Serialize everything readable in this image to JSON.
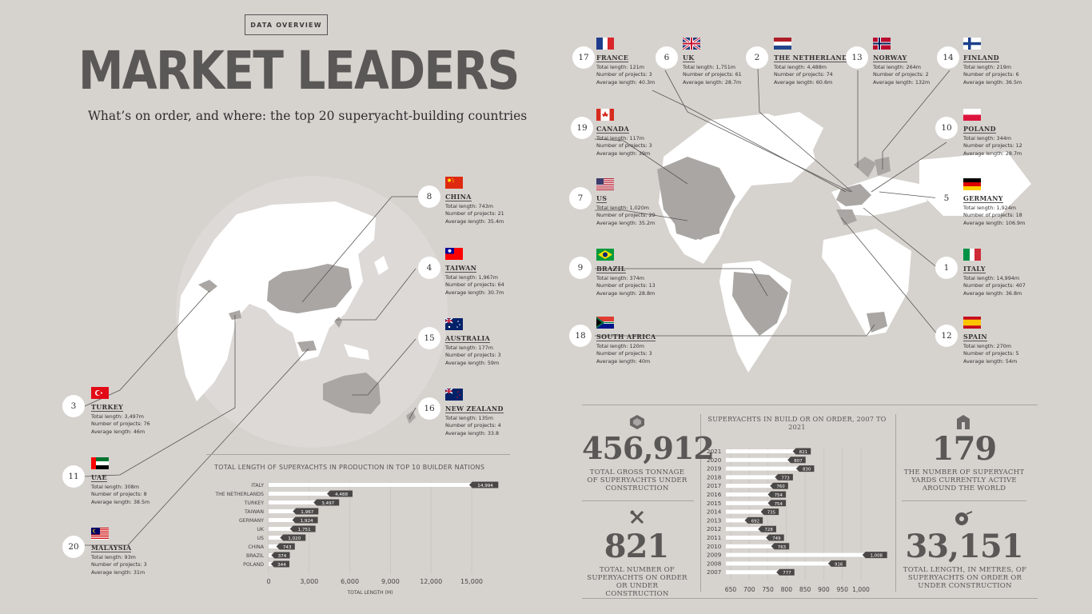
{
  "header": {
    "tag": "DATA OVERVIEW",
    "title": "MARKET LEADERS",
    "subtitle": "What’s on order, and where: the top 20 superyacht-building countries"
  },
  "stat_labels": {
    "total_length": "Total length: ",
    "projects": "Number of projects: ",
    "average": "Average length: "
  },
  "countries": [
    {
      "rank": "17",
      "name": "FRANCE",
      "total": "121m",
      "projects": "3",
      "average": "40.3m",
      "flag": "france"
    },
    {
      "rank": "6",
      "name": "UK",
      "total": "1,751m",
      "projects": "61",
      "average": "28.7m",
      "flag": "uk"
    },
    {
      "rank": "2",
      "name": "THE NETHERLANDS",
      "total": "4,488m",
      "projects": "74",
      "average": "60.6m",
      "flag": "netherlands"
    },
    {
      "rank": "13",
      "name": "NORWAY",
      "total": "264m",
      "projects": "2",
      "average": "132m",
      "flag": "norway"
    },
    {
      "rank": "14",
      "name": "FINLAND",
      "total": "219m",
      "projects": "6",
      "average": "36.5m",
      "flag": "finland"
    },
    {
      "rank": "19",
      "name": "CANADA",
      "total": "117m",
      "projects": "3",
      "average": "39m",
      "flag": "canada"
    },
    {
      "rank": "10",
      "name": "POLAND",
      "total": "344m",
      "projects": "12",
      "average": "28.7m",
      "flag": "poland"
    },
    {
      "rank": "7",
      "name": "US",
      "total": "1,020m",
      "projects": "29",
      "average": "35.2m",
      "flag": "us"
    },
    {
      "rank": "5",
      "name": "GERMANY",
      "total": "1,924m",
      "projects": "18",
      "average": "106.9m",
      "flag": "germany"
    },
    {
      "rank": "9",
      "name": "BRAZIL",
      "total": "374m",
      "projects": "13",
      "average": "28.8m",
      "flag": "brazil"
    },
    {
      "rank": "1",
      "name": "ITALY",
      "total": "14,994m",
      "projects": "407",
      "average": "36.8m",
      "flag": "italy"
    },
    {
      "rank": "18",
      "name": "SOUTH AFRICA",
      "total": "120m",
      "projects": "3",
      "average": "40m",
      "flag": "southafrica"
    },
    {
      "rank": "12",
      "name": "SPAIN",
      "total": "270m",
      "projects": "5",
      "average": "54m",
      "flag": "spain"
    },
    {
      "rank": "8",
      "name": "CHINA",
      "total": "743m",
      "projects": "21",
      "average": "35.4m",
      "flag": "china"
    },
    {
      "rank": "4",
      "name": "TAIWAN",
      "total": "1,967m",
      "projects": "64",
      "average": "30.7m",
      "flag": "taiwan"
    },
    {
      "rank": "15",
      "name": "AUSTRALIA",
      "total": "177m",
      "projects": "3",
      "average": "59m",
      "flag": "australia"
    },
    {
      "rank": "16",
      "name": "NEW ZEALAND",
      "total": "135m",
      "projects": "4",
      "average": "33.8",
      "flag": "newzealand"
    },
    {
      "rank": "3",
      "name": "TURKEY",
      "total": "3,497m",
      "projects": "76",
      "average": "46m",
      "flag": "turkey"
    },
    {
      "rank": "11",
      "name": "UAE",
      "total": "308m",
      "projects": "8",
      "average": "38.5m",
      "flag": "uae"
    },
    {
      "rank": "20",
      "name": "MALAYSIA",
      "total": "93m",
      "projects": "3",
      "average": "31m",
      "flag": "malaysia"
    }
  ],
  "stats": {
    "tonnage_value": "456,912",
    "tonnage_label": "TOTAL GROSS TONNAGE OF SUPERYACHTS UNDER CONSTRUCTION",
    "orders_value": "821",
    "orders_label": "TOTAL NUMBER OF SUPERYACHTS ON ORDER OR UNDER CONSTRUCTION",
    "yards_value": "179",
    "yards_label": "THE NUMBER OF SUPERYACHT YARDS CURRENTLY ACTIVE AROUND THE WORLD",
    "length_value": "33,151",
    "length_label": "TOTAL LENGTH, IN METRES, OF SUPERYACHTS ON ORDER OR UNDER CONSTRUCTION"
  },
  "chart_data": [
    {
      "type": "bar",
      "orientation": "horizontal",
      "title": "TOTAL LENGTH OF SUPERYACHTS IN PRODUCTION IN TOP 10 BUILDER NATIONS",
      "xlabel": "TOTAL LENGTH (M)",
      "categories": [
        "ITALY",
        "THE NETHERLANDS",
        "TURKEY",
        "TAIWAN",
        "GERMANY",
        "UK",
        "US",
        "CHINA",
        "BRAZIL",
        "POLAND"
      ],
      "values": [
        14994,
        4488,
        3497,
        1967,
        1924,
        1751,
        1020,
        743,
        374,
        344
      ],
      "data_labels": [
        "14,994",
        "4,488",
        "3,497",
        "1,967",
        "1,924",
        "1,751",
        "1,020",
        "743",
        "374",
        "344"
      ],
      "xlim": [
        0,
        15000
      ],
      "xticks": [
        "0",
        "3,000",
        "6,000",
        "9,000",
        "12,000",
        "15,000"
      ],
      "xtick_values": [
        0,
        3000,
        6000,
        9000,
        12000,
        15000
      ],
      "grid": true,
      "colors": {
        "bar": "#ffffff",
        "label": "#4a4846"
      }
    },
    {
      "type": "bar",
      "orientation": "horizontal",
      "title": "SUPERYACHTS IN BUILD OR ON ORDER, 2007 TO 2021",
      "categories": [
        "2021",
        "2020",
        "2019",
        "2018",
        "2017",
        "2016",
        "2015",
        "2014",
        "2013",
        "2012",
        "2011",
        "2010",
        "2009",
        "2008",
        "2007"
      ],
      "values": [
        821,
        807,
        830,
        773,
        760,
        754,
        754,
        735,
        692,
        728,
        749,
        763,
        1008,
        916,
        777
      ],
      "data_labels": [
        "821",
        "807",
        "830",
        "773",
        "760",
        "754",
        "754",
        "735",
        "692",
        "728",
        "749",
        "763",
        "1,008",
        "916",
        "777"
      ],
      "xlim": [
        650,
        1000
      ],
      "xticks": [
        "650",
        "700",
        "750",
        "800",
        "850",
        "900",
        "950",
        "1,000"
      ],
      "xtick_values": [
        650,
        700,
        750,
        800,
        850,
        900,
        950,
        1000
      ],
      "grid": true,
      "colors": {
        "bar": "#ffffff",
        "label": "#4a4846"
      }
    }
  ]
}
